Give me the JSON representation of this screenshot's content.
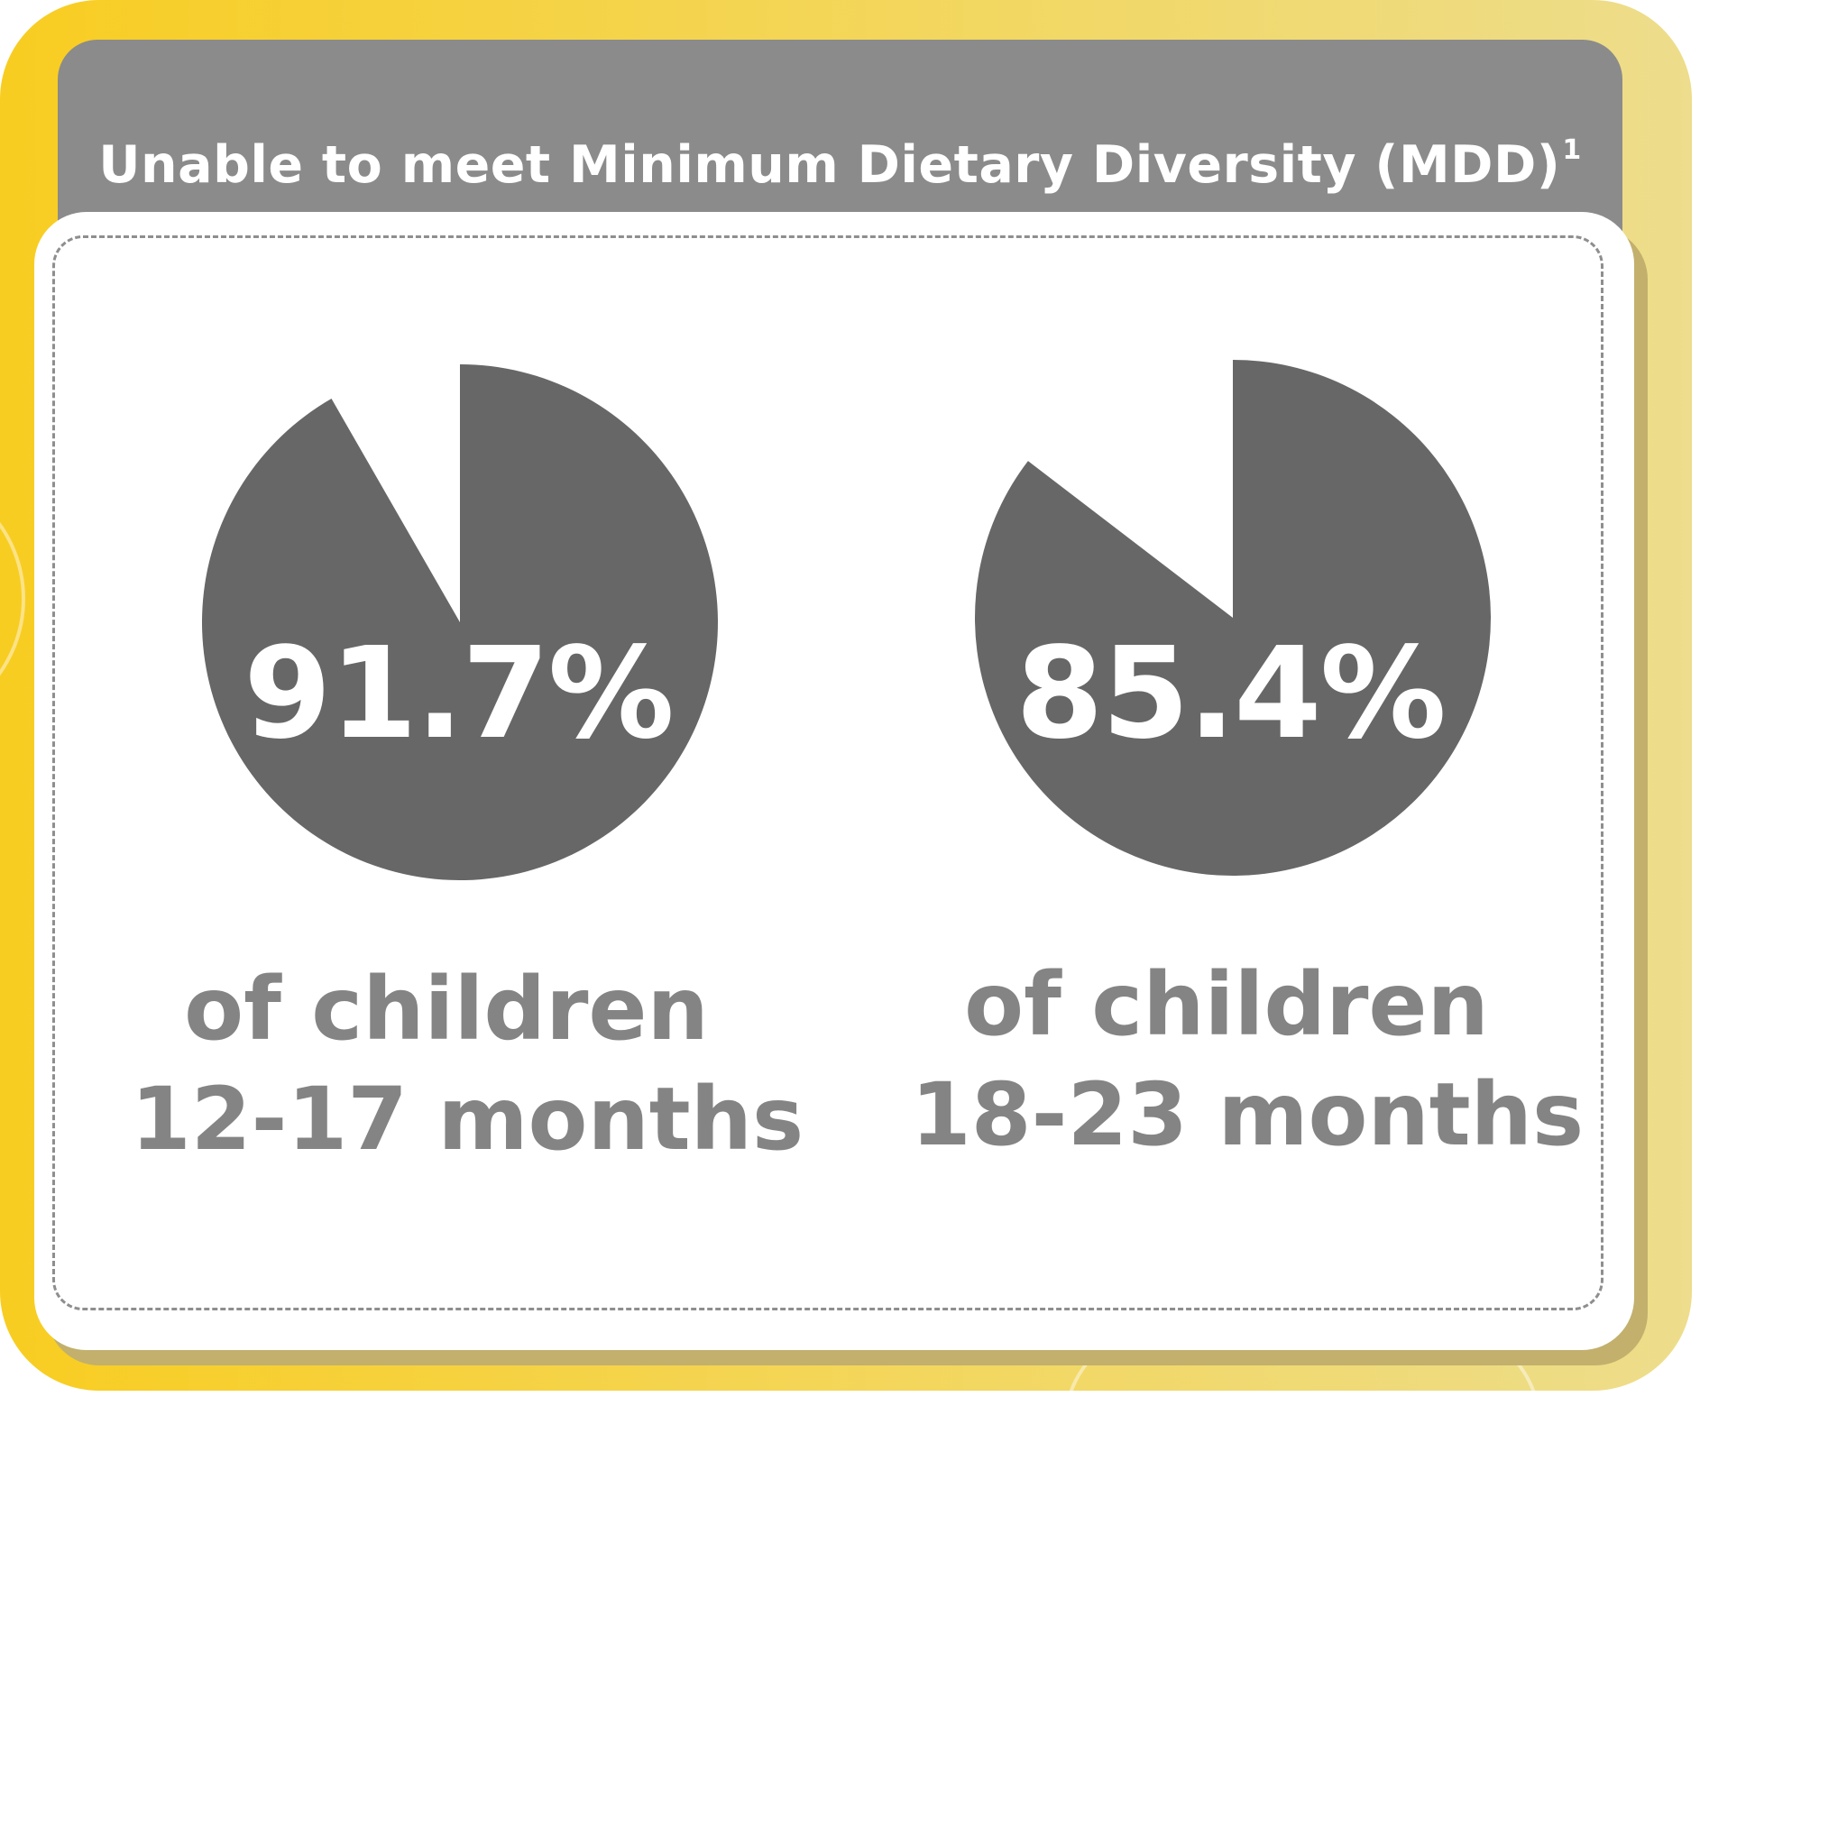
{
  "header": {
    "title": "Unable to meet Minimum Dietary Diversity (MDD)",
    "footnote": "1"
  },
  "colors": {
    "pie_fill": "#676767",
    "pie_gap": "#ffffff",
    "caption": "#848484",
    "header_bg": "#8b8b8b",
    "frame": "#f8cd21"
  },
  "chart_data": [
    {
      "type": "pie",
      "value_percent": 91.7,
      "label": "91.7%",
      "caption_line1": "of children",
      "caption_line2": "12-17 months"
    },
    {
      "type": "pie",
      "value_percent": 85.4,
      "label": "85.4%",
      "caption_line1": "of children",
      "caption_line2": "18-23 months"
    }
  ]
}
